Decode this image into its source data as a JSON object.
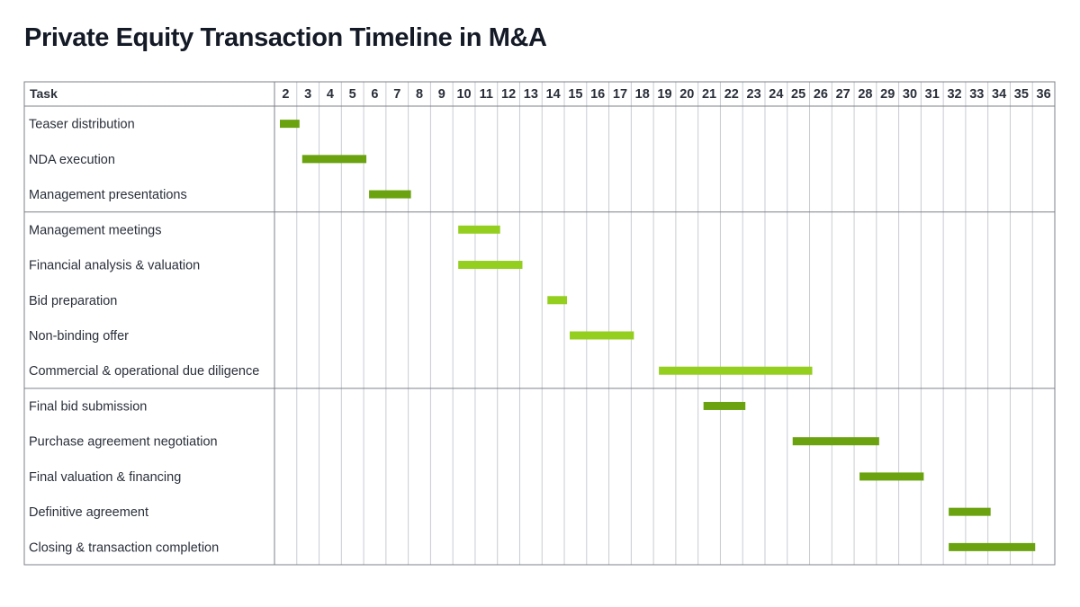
{
  "chart_data": {
    "type": "gantt",
    "title": "Private Equity Transaction Timeline in M&A",
    "task_column_header": "Task",
    "x_axis_ticks": [
      2,
      3,
      4,
      5,
      6,
      7,
      8,
      9,
      10,
      11,
      12,
      13,
      14,
      15,
      16,
      17,
      18,
      19,
      20,
      21,
      22,
      23,
      24,
      25,
      26,
      27,
      28,
      29,
      30,
      31,
      32,
      33,
      34,
      35,
      36
    ],
    "grid": true,
    "colors": {
      "phase1": "#6aa30f",
      "phase2": "#94cf1f",
      "phase3": "#6aa30f",
      "grid": "#c8cbd1",
      "border": "#7d8088"
    },
    "phases": [
      {
        "color_key": "phase1",
        "tasks": [
          {
            "name": "Teaser distribution",
            "start": 2,
            "end": 3
          },
          {
            "name": "NDA execution",
            "start": 3,
            "end": 6
          },
          {
            "name": "Management presentations",
            "start": 6,
            "end": 8
          }
        ]
      },
      {
        "color_key": "phase2",
        "tasks": [
          {
            "name": "Management meetings",
            "start": 10,
            "end": 12
          },
          {
            "name": "Financial analysis & valuation",
            "start": 10,
            "end": 13
          },
          {
            "name": "Bid preparation",
            "start": 14,
            "end": 15
          },
          {
            "name": "Non-binding offer",
            "start": 15,
            "end": 18
          },
          {
            "name": "Commercial & operational due diligence",
            "start": 19,
            "end": 26
          }
        ]
      },
      {
        "color_key": "phase3",
        "tasks": [
          {
            "name": "Final bid submission",
            "start": 21,
            "end": 23
          },
          {
            "name": "Purchase agreement negotiation",
            "start": 25,
            "end": 29
          },
          {
            "name": "Final valuation & financing",
            "start": 28,
            "end": 31
          },
          {
            "name": "Definitive agreement",
            "start": 32,
            "end": 34
          },
          {
            "name": "Closing & transaction completion",
            "start": 32,
            "end": 36
          }
        ]
      }
    ]
  }
}
